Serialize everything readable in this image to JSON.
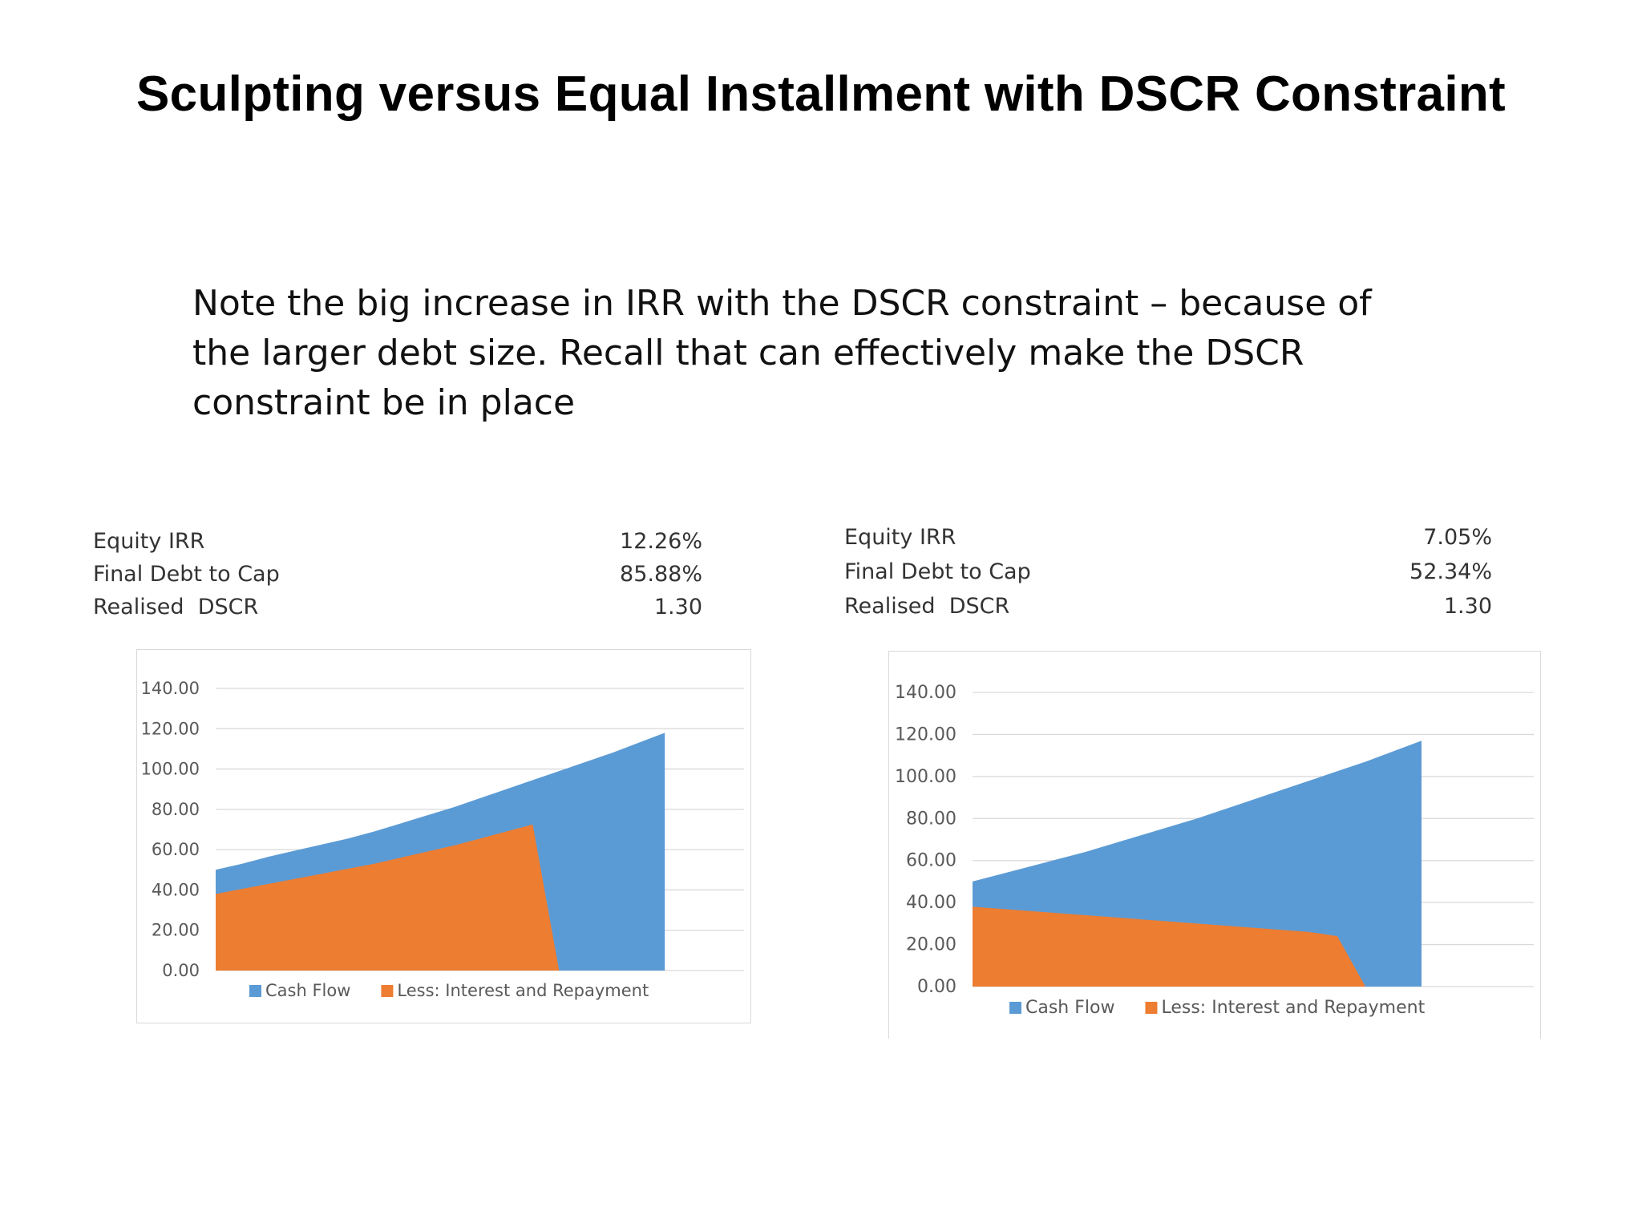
{
  "page": {
    "title": "Sculpting versus Equal Installment with DSCR Constraint",
    "note": "Note the big increase in IRR with the DSCR constraint – because of the larger debt size.  Recall that can effectively make the DSCR constraint be in place"
  },
  "stats_left": [
    {
      "label": "Equity IRR",
      "value": "12.26%"
    },
    {
      "label": "Final Debt to Cap",
      "value": "85.88%"
    },
    {
      "label": "Realised  DSCR",
      "value": "1.30"
    }
  ],
  "stats_right": [
    {
      "label": "Equity IRR",
      "value": "7.05%"
    },
    {
      "label": "Final Debt to Cap",
      "value": "52.34%"
    },
    {
      "label": "Realised  DSCR",
      "value": "1.30"
    }
  ],
  "colors": {
    "cash_flow": "#5b9bd5",
    "interest_repayment": "#ed7d31",
    "gridline": "#d9d9d9",
    "axis_text": "#595959"
  },
  "chart_data": [
    {
      "type": "area",
      "ylim": [
        0,
        140
      ],
      "yticks": [
        "0.00",
        "20.00",
        "40.00",
        "60.00",
        "80.00",
        "100.00",
        "120.00",
        "140.00"
      ],
      "x": [
        1,
        2,
        3,
        4,
        5,
        6,
        7,
        8,
        9,
        10,
        11,
        12,
        13,
        14,
        15,
        16,
        17,
        18,
        19,
        20,
        21
      ],
      "series": [
        {
          "name": "Cash Flow",
          "values": [
            50.0,
            53.0,
            56.5,
            59.5,
            62.5,
            65.5,
            69.0,
            73.0,
            77.0,
            81.0,
            85.5,
            90.0,
            94.5,
            99.0,
            103.5,
            108.0,
            113.0,
            118.0,
            null,
            null,
            null
          ]
        },
        {
          "name": "Less: Interest and Repayment",
          "values": [
            38.0,
            40.5,
            43.0,
            45.5,
            48.0,
            50.5,
            53.0,
            56.0,
            59.0,
            62.0,
            65.5,
            69.0,
            72.5,
            0,
            0,
            0,
            0,
            0,
            null,
            null,
            null
          ]
        }
      ]
    },
    {
      "type": "area",
      "ylim": [
        0,
        140
      ],
      "yticks": [
        "0.00",
        "20.00",
        "40.00",
        "60.00",
        "80.00",
        "100.00",
        "120.00",
        "140.00"
      ],
      "x": [
        1,
        2,
        3,
        4,
        5,
        6,
        7,
        8,
        9,
        10,
        11,
        12,
        13,
        14,
        15,
        16,
        17,
        18,
        19,
        20,
        21
      ],
      "series": [
        {
          "name": "Cash Flow",
          "values": [
            50.0,
            53.5,
            57.0,
            60.5,
            64.0,
            68.0,
            72.0,
            76.0,
            80.0,
            84.5,
            89.0,
            93.5,
            98.0,
            102.5,
            107.0,
            112.0,
            117.0,
            null,
            null,
            null,
            null
          ]
        },
        {
          "name": "Less: Interest and Repayment",
          "values": [
            38.0,
            37.0,
            36.0,
            35.0,
            34.0,
            33.0,
            32.0,
            31.0,
            30.0,
            29.0,
            28.0,
            27.0,
            26.0,
            24.0,
            0,
            0,
            0,
            null,
            null,
            null,
            null
          ]
        }
      ]
    }
  ]
}
